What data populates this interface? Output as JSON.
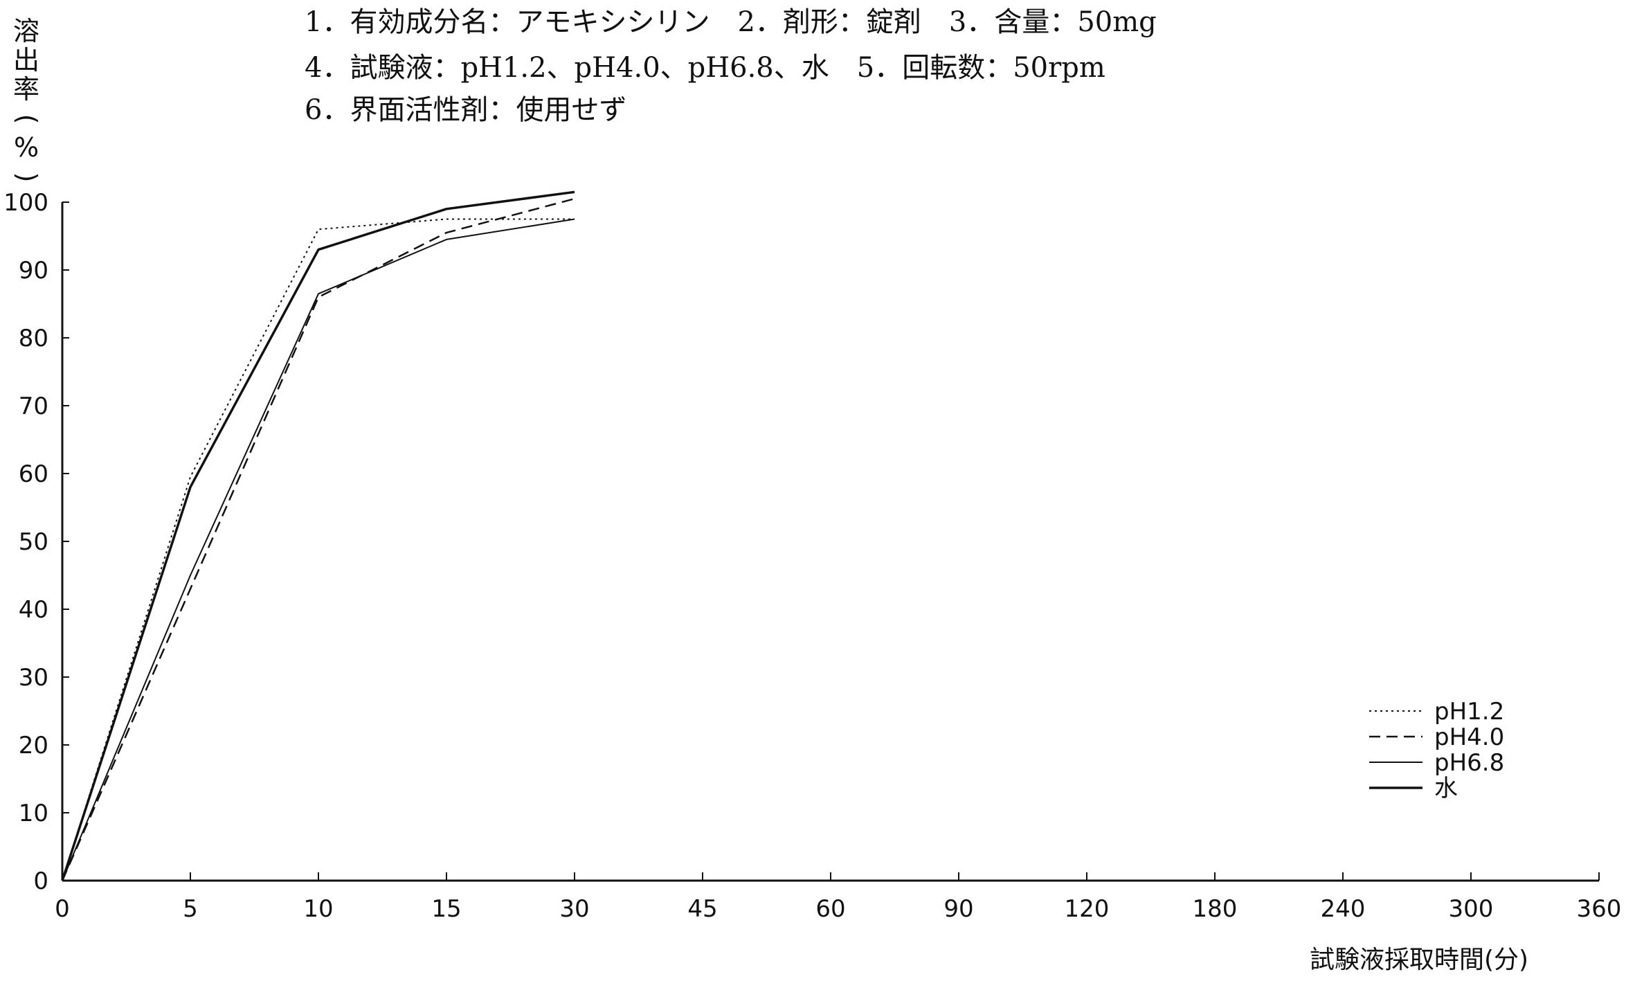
{
  "header": {
    "lines": [
      "1．有効成分名：アモキシシリン　2．剤形：錠剤　3．含量：50mg",
      "4．試験液：pH1.2、pH4.0、pH6.8、水　5．回転数：50rpm",
      "6．界面活性剤：使用せず"
    ]
  },
  "chart_data": {
    "type": "line",
    "title": "",
    "ylabel": "溶出率(%)",
    "xlabel": "試験液採取時間(分)",
    "x_categories": [
      "0",
      "5",
      "10",
      "15",
      "30",
      "45",
      "60",
      "90",
      "120",
      "180",
      "240",
      "300",
      "360"
    ],
    "yticks": [
      "0",
      "10",
      "20",
      "30",
      "40",
      "50",
      "60",
      "70",
      "80",
      "90",
      "100"
    ],
    "ylim": [
      0,
      100
    ],
    "grid": false,
    "legend_position": "bottom-right",
    "series": [
      {
        "name": "pH1.2",
        "style": "dotted",
        "x": [
          0,
          5,
          10,
          15,
          30
        ],
        "y": [
          0,
          59.5,
          96.0,
          97.5,
          97.5
        ]
      },
      {
        "name": "pH4.0",
        "style": "dashed",
        "x": [
          0,
          5,
          10,
          15,
          30
        ],
        "y": [
          0,
          43.0,
          86.0,
          95.5,
          100.5
        ]
      },
      {
        "name": "pH6.8",
        "style": "solid-thin",
        "x": [
          0,
          5,
          10,
          15,
          30
        ],
        "y": [
          0,
          45.0,
          86.5,
          94.5,
          97.5
        ]
      },
      {
        "name": "水",
        "style": "solid-thick",
        "x": [
          0,
          5,
          10,
          15,
          30
        ],
        "y": [
          0,
          58.0,
          93.0,
          99.0,
          101.5
        ]
      }
    ]
  }
}
